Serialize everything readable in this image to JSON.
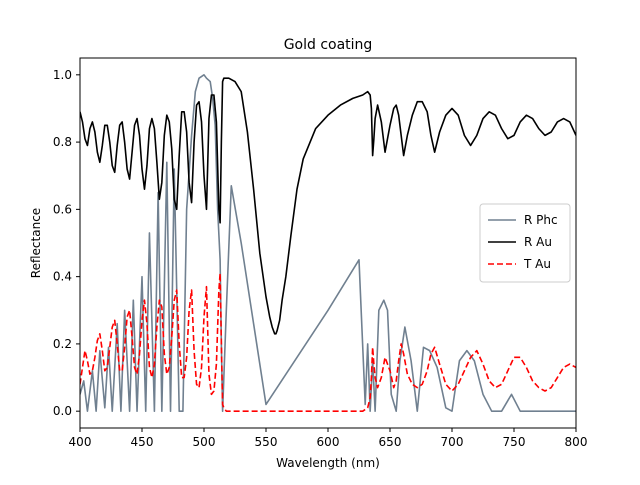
{
  "chart_data": {
    "type": "line",
    "title": "Gold coating",
    "xlabel": "Wavelength (nm)",
    "ylabel": "Reflectance",
    "xlim": [
      400,
      800
    ],
    "ylim": [
      -0.05,
      1.05
    ],
    "xticks": [
      400,
      450,
      500,
      550,
      600,
      650,
      700,
      750,
      800
    ],
    "xtick_labels": [
      "400",
      "450",
      "500",
      "550",
      "600",
      "650",
      "700",
      "750",
      "800"
    ],
    "yticks": [
      0.0,
      0.2,
      0.4,
      0.6,
      0.8,
      1.0
    ],
    "ytick_labels": [
      "0.0",
      "0.2",
      "0.4",
      "0.6",
      "0.8",
      "1.0"
    ],
    "grid": false,
    "legend_position": "center-right",
    "series": [
      {
        "name": "R Phc",
        "color": "#708090",
        "style": "solid",
        "x": [
          400,
          403,
          406,
          410,
          413,
          416,
          420,
          423,
          426,
          430,
          433,
          436,
          440,
          443,
          446,
          450,
          453,
          456,
          460,
          463,
          466,
          470,
          473,
          476,
          480,
          483,
          486,
          490,
          493,
          496,
          500,
          502,
          505,
          507,
          509,
          511,
          513,
          514,
          515,
          518,
          522,
          530,
          550,
          600,
          625,
          630,
          632,
          634,
          636,
          638,
          641,
          645,
          648,
          651,
          655,
          658,
          662,
          667,
          672,
          677,
          682,
          688,
          695,
          700,
          706,
          712,
          718,
          725,
          732,
          740,
          748,
          755,
          762,
          770,
          778,
          786,
          793,
          800
        ],
        "y": [
          0.05,
          0.09,
          0.0,
          0.12,
          0.0,
          0.18,
          0.01,
          0.19,
          0.0,
          0.26,
          0.0,
          0.3,
          0.0,
          0.33,
          0.0,
          0.4,
          0.0,
          0.53,
          0.0,
          0.65,
          0.0,
          0.74,
          0.0,
          0.72,
          0.0,
          0.0,
          0.6,
          0.82,
          0.95,
          0.99,
          1.0,
          0.99,
          0.98,
          0.93,
          0.85,
          0.6,
          0.45,
          0.2,
          0.0,
          0.3,
          0.67,
          0.5,
          0.02,
          0.3,
          0.45,
          0.02,
          0.2,
          0.0,
          0.15,
          0.0,
          0.3,
          0.33,
          0.3,
          0.05,
          0.0,
          0.15,
          0.25,
          0.15,
          0.0,
          0.19,
          0.18,
          0.13,
          0.01,
          0.0,
          0.15,
          0.18,
          0.15,
          0.05,
          0.0,
          0.0,
          0.05,
          0.0,
          0.0,
          0.0,
          0.0,
          0.0,
          0.0,
          0.0
        ]
      },
      {
        "name": "R Au",
        "color": "#000000",
        "style": "solid",
        "x": [
          400,
          402,
          404,
          406,
          408,
          410,
          412,
          414,
          416,
          418,
          420,
          422,
          424,
          426,
          428,
          430,
          432,
          434,
          436,
          438,
          440,
          442,
          444,
          446,
          448,
          450,
          452,
          454,
          456,
          458,
          460,
          462,
          464,
          466,
          468,
          470,
          472,
          474,
          476,
          478,
          480,
          482,
          484,
          486,
          488,
          490,
          492,
          494,
          496,
          498,
          500,
          502,
          504,
          506,
          508,
          510,
          512,
          513,
          514,
          515,
          516,
          518,
          520,
          525,
          530,
          535,
          540,
          545,
          550,
          553,
          555,
          557,
          558,
          559,
          561,
          563,
          566,
          570,
          575,
          580,
          590,
          600,
          610,
          620,
          628,
          632,
          634,
          635,
          636,
          637,
          638,
          640,
          643,
          646,
          650,
          653,
          655,
          657,
          659,
          661,
          664,
          668,
          672,
          676,
          680,
          683,
          686,
          690,
          695,
          700,
          705,
          710,
          715,
          720,
          725,
          730,
          735,
          740,
          745,
          750,
          755,
          760,
          765,
          770,
          775,
          780,
          785,
          790,
          795,
          800
        ],
        "y": [
          0.89,
          0.86,
          0.81,
          0.79,
          0.84,
          0.86,
          0.83,
          0.77,
          0.74,
          0.79,
          0.85,
          0.85,
          0.8,
          0.73,
          0.71,
          0.79,
          0.85,
          0.86,
          0.8,
          0.72,
          0.69,
          0.77,
          0.85,
          0.87,
          0.82,
          0.72,
          0.66,
          0.73,
          0.84,
          0.87,
          0.84,
          0.74,
          0.63,
          0.68,
          0.82,
          0.88,
          0.86,
          0.78,
          0.63,
          0.6,
          0.76,
          0.89,
          0.89,
          0.83,
          0.68,
          0.62,
          0.8,
          0.91,
          0.92,
          0.86,
          0.7,
          0.6,
          0.87,
          0.94,
          0.94,
          0.86,
          0.6,
          0.56,
          0.8,
          0.98,
          0.99,
          0.99,
          0.99,
          0.98,
          0.95,
          0.83,
          0.66,
          0.47,
          0.34,
          0.28,
          0.25,
          0.23,
          0.23,
          0.24,
          0.27,
          0.33,
          0.4,
          0.52,
          0.66,
          0.75,
          0.84,
          0.88,
          0.91,
          0.93,
          0.94,
          0.95,
          0.94,
          0.9,
          0.76,
          0.81,
          0.87,
          0.91,
          0.86,
          0.77,
          0.85,
          0.9,
          0.91,
          0.88,
          0.82,
          0.76,
          0.82,
          0.88,
          0.92,
          0.92,
          0.89,
          0.82,
          0.77,
          0.83,
          0.88,
          0.9,
          0.88,
          0.82,
          0.79,
          0.82,
          0.87,
          0.89,
          0.88,
          0.84,
          0.81,
          0.82,
          0.86,
          0.88,
          0.87,
          0.84,
          0.82,
          0.83,
          0.86,
          0.87,
          0.86,
          0.82
        ]
      },
      {
        "name": "T Au",
        "color": "#ff0000",
        "style": "dashed",
        "x": [
          400,
          402,
          404,
          406,
          408,
          410,
          412,
          414,
          416,
          418,
          420,
          422,
          424,
          426,
          428,
          430,
          432,
          434,
          436,
          438,
          440,
          442,
          444,
          446,
          448,
          450,
          452,
          454,
          456,
          458,
          460,
          462,
          464,
          466,
          468,
          470,
          472,
          474,
          476,
          478,
          480,
          482,
          484,
          486,
          488,
          490,
          492,
          494,
          496,
          498,
          500,
          502,
          504,
          506,
          508,
          510,
          512,
          513,
          514,
          515,
          516,
          518,
          520,
          525,
          530,
          560,
          600,
          620,
          628,
          632,
          634,
          635,
          636,
          637,
          638,
          640,
          643,
          646,
          650,
          653,
          655,
          657,
          659,
          661,
          664,
          668,
          672,
          676,
          680,
          683,
          686,
          690,
          695,
          700,
          705,
          710,
          715,
          720,
          725,
          730,
          735,
          740,
          745,
          750,
          755,
          760,
          765,
          770,
          775,
          780,
          785,
          790,
          795,
          800
        ],
        "y": [
          0.08,
          0.13,
          0.18,
          0.15,
          0.11,
          0.12,
          0.16,
          0.21,
          0.23,
          0.18,
          0.12,
          0.13,
          0.19,
          0.25,
          0.27,
          0.2,
          0.12,
          0.12,
          0.19,
          0.28,
          0.3,
          0.22,
          0.13,
          0.11,
          0.17,
          0.27,
          0.33,
          0.26,
          0.13,
          0.1,
          0.14,
          0.25,
          0.33,
          0.31,
          0.17,
          0.11,
          0.13,
          0.22,
          0.33,
          0.36,
          0.2,
          0.1,
          0.1,
          0.16,
          0.3,
          0.36,
          0.18,
          0.08,
          0.07,
          0.13,
          0.28,
          0.37,
          0.11,
          0.05,
          0.06,
          0.14,
          0.36,
          0.41,
          0.2,
          0.02,
          0.01,
          0.0,
          0.0,
          0.0,
          0.0,
          0.0,
          0.0,
          0.0,
          0.0,
          0.01,
          0.04,
          0.1,
          0.19,
          0.14,
          0.1,
          0.07,
          0.1,
          0.16,
          0.12,
          0.07,
          0.09,
          0.15,
          0.2,
          0.17,
          0.11,
          0.08,
          0.07,
          0.08,
          0.12,
          0.17,
          0.19,
          0.14,
          0.08,
          0.06,
          0.08,
          0.12,
          0.16,
          0.18,
          0.14,
          0.09,
          0.07,
          0.08,
          0.12,
          0.16,
          0.16,
          0.13,
          0.09,
          0.07,
          0.06,
          0.07,
          0.1,
          0.13,
          0.14,
          0.13
        ]
      }
    ]
  }
}
